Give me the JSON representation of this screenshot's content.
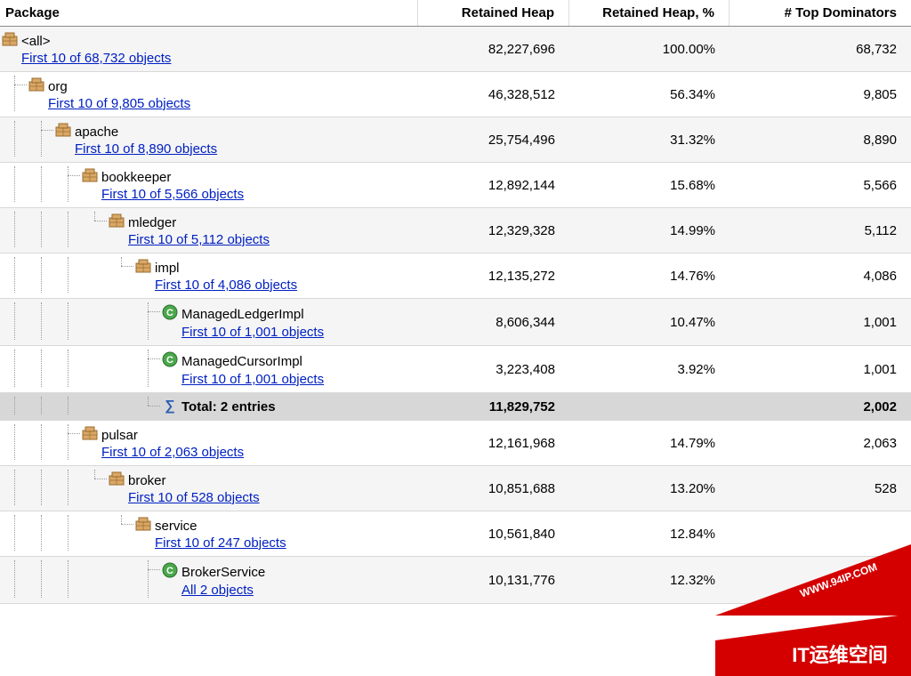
{
  "columns": {
    "package": "Package",
    "retained_heap": "Retained Heap",
    "retained_pct": "Retained Heap, %",
    "dominators": "# Top Dominators"
  },
  "link_colors": {
    "link": "#0020c2"
  },
  "icon_colors": {
    "package_fill": "#d9a866",
    "package_stroke": "#9a6b2e",
    "class_fill": "#4aa84a",
    "class_stroke": "#2d6e2d",
    "class_text": "#ffffff",
    "sigma": "#2a5fb0"
  },
  "palette": {
    "even_row": "#f5f5f5",
    "odd_row": "#ffffff",
    "total_row": "#d7d7d7",
    "border": "#d8d8d8",
    "header_border": "#888888",
    "text": "#000000"
  },
  "rows": [
    {
      "indent": 0,
      "guides": [],
      "icon": "package",
      "name": "<all>",
      "link": "First 10 of 68,732 objects",
      "heap": "82,227,696",
      "pct": "100.00%",
      "dom": "68,732",
      "bg": "even"
    },
    {
      "indent": 1,
      "guides": [
        "tee"
      ],
      "icon": "package",
      "name": "org",
      "link": "First 10 of 9,805 objects",
      "heap": "46,328,512",
      "pct": "56.34%",
      "dom": "9,805",
      "bg": "odd"
    },
    {
      "indent": 2,
      "guides": [
        "vert",
        "tee"
      ],
      "icon": "package",
      "name": "apache",
      "link": "First 10 of 8,890 objects",
      "heap": "25,754,496",
      "pct": "31.32%",
      "dom": "8,890",
      "bg": "even"
    },
    {
      "indent": 3,
      "guides": [
        "vert",
        "vert",
        "tee"
      ],
      "icon": "package",
      "name": "bookkeeper",
      "link": "First 10 of 5,566 objects",
      "heap": "12,892,144",
      "pct": "15.68%",
      "dom": "5,566",
      "bg": "odd"
    },
    {
      "indent": 4,
      "guides": [
        "vert",
        "vert",
        "vert",
        "ell"
      ],
      "icon": "package",
      "name": "mledger",
      "link": "First 10 of 5,112 objects",
      "heap": "12,329,328",
      "pct": "14.99%",
      "dom": "5,112",
      "bg": "even"
    },
    {
      "indent": 5,
      "guides": [
        "vert",
        "vert",
        "vert",
        "blank",
        "ell"
      ],
      "icon": "package",
      "name": "impl",
      "link": "First 10 of 4,086 objects",
      "heap": "12,135,272",
      "pct": "14.76%",
      "dom": "4,086",
      "bg": "odd"
    },
    {
      "indent": 6,
      "guides": [
        "vert",
        "vert",
        "vert",
        "blank",
        "blank",
        "tee"
      ],
      "icon": "class",
      "name": "ManagedLedgerImpl",
      "link": "First 10 of 1,001 objects",
      "heap": "8,606,344",
      "pct": "10.47%",
      "dom": "1,001",
      "bg": "even"
    },
    {
      "indent": 6,
      "guides": [
        "vert",
        "vert",
        "vert",
        "blank",
        "blank",
        "tee"
      ],
      "icon": "class",
      "name": "ManagedCursorImpl",
      "link": "First 10 of 1,001 objects",
      "heap": "3,223,408",
      "pct": "3.92%",
      "dom": "1,001",
      "bg": "odd"
    },
    {
      "indent": 6,
      "guides": [
        "vert",
        "vert",
        "vert",
        "blank",
        "blank",
        "ell"
      ],
      "icon": "sigma",
      "name": "Total: 2 entries",
      "link": "",
      "heap": "11,829,752",
      "pct": "",
      "dom": "2,002",
      "bg": "total"
    },
    {
      "indent": 3,
      "guides": [
        "vert",
        "vert",
        "tee"
      ],
      "icon": "package",
      "name": "pulsar",
      "link": "First 10 of 2,063 objects",
      "heap": "12,161,968",
      "pct": "14.79%",
      "dom": "2,063",
      "bg": "odd"
    },
    {
      "indent": 4,
      "guides": [
        "vert",
        "vert",
        "vert",
        "ell"
      ],
      "icon": "package",
      "name": "broker",
      "link": "First 10 of 528 objects",
      "heap": "10,851,688",
      "pct": "13.20%",
      "dom": "528",
      "bg": "even"
    },
    {
      "indent": 5,
      "guides": [
        "vert",
        "vert",
        "vert",
        "blank",
        "ell"
      ],
      "icon": "package",
      "name": "service",
      "link": "First 10 of 247 objects",
      "heap": "10,561,840",
      "pct": "12.84%",
      "dom": "",
      "bg": "odd"
    },
    {
      "indent": 6,
      "guides": [
        "vert",
        "vert",
        "vert",
        "blank",
        "blank",
        "tee"
      ],
      "icon": "class",
      "name": "BrokerService",
      "link": "All 2 objects",
      "heap": "10,131,776",
      "pct": "12.32%",
      "dom": "",
      "bg": "even"
    }
  ],
  "watermark": {
    "url_text": "WWW.94IP.COM",
    "label_text": "IT运维空间",
    "bg": "#d40000",
    "text": "#ffffff"
  }
}
